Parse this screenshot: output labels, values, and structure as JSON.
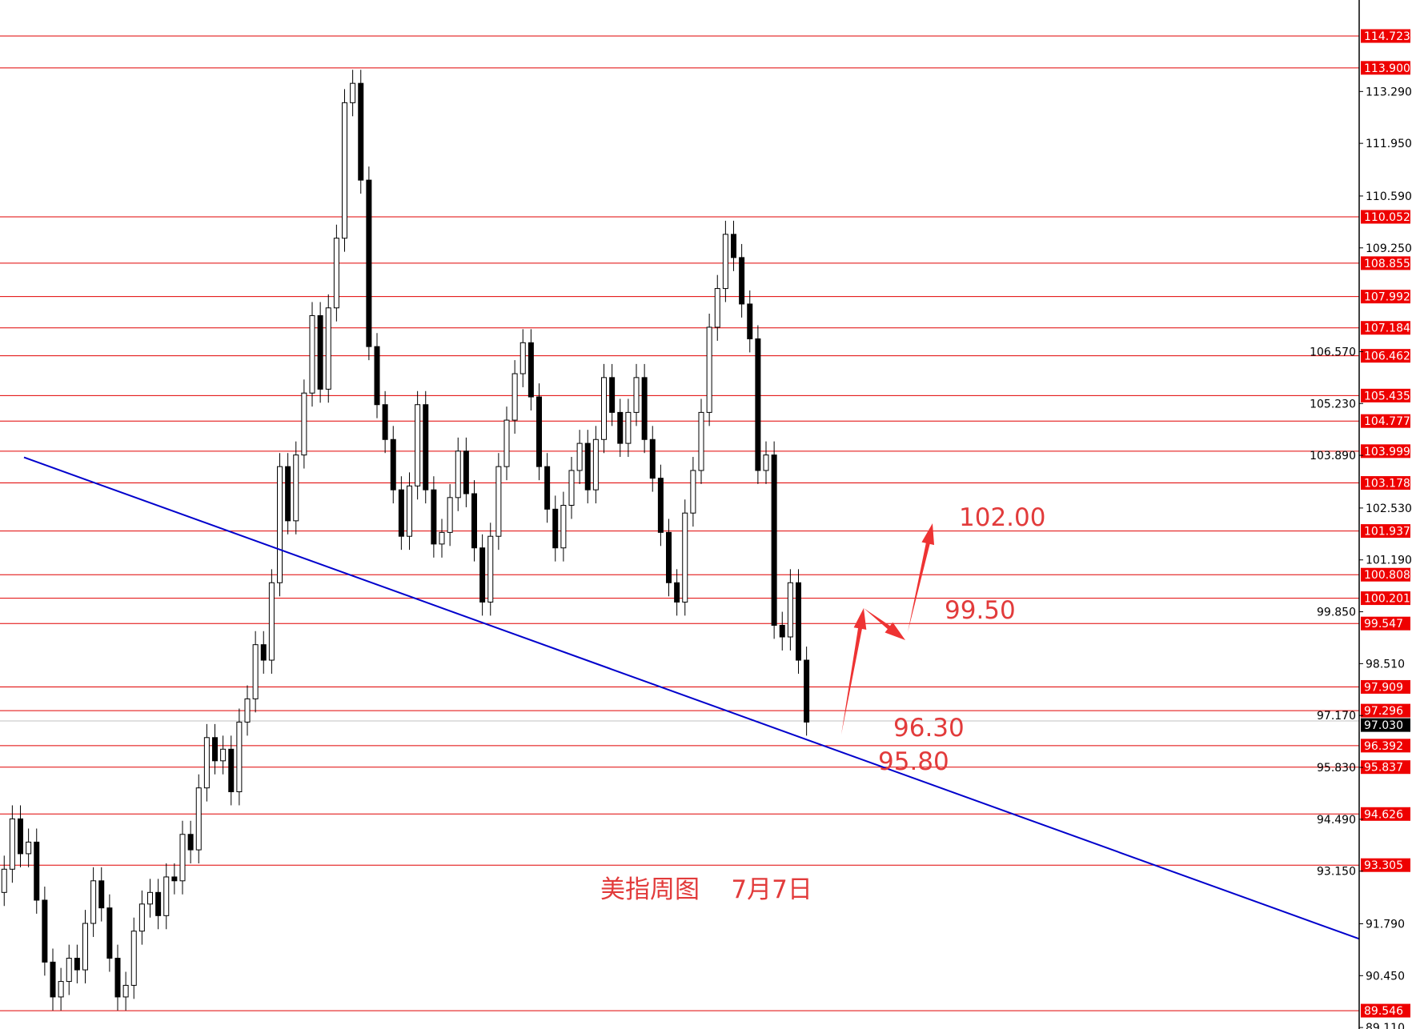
{
  "chart_data": {
    "type": "candlestick",
    "title": "美指周图    7月7日",
    "ylim": [
      89.0,
      115.6
    ],
    "y_ticks": [
      "113.290",
      "111.950",
      "110.590",
      "109.250",
      "106.570",
      "105.230",
      "103.890",
      "102.530",
      "101.190",
      "99.850",
      "98.510",
      "97.170",
      "95.830",
      "94.490",
      "93.150",
      "91.790",
      "90.450",
      "89.110"
    ],
    "current_price": "97.030",
    "closes": [
      93.2,
      94.5,
      93.6,
      93.9,
      92.4,
      90.8,
      89.9,
      90.3,
      90.9,
      90.6,
      91.8,
      92.9,
      92.2,
      90.9,
      89.9,
      90.2,
      91.6,
      92.3,
      92.6,
      92.0,
      93.0,
      92.9,
      94.1,
      93.7,
      95.3,
      96.6,
      96.0,
      96.3,
      95.2,
      97.0,
      97.6,
      99.0,
      98.6,
      100.6,
      103.6,
      102.2,
      103.9,
      105.5,
      107.5,
      105.6,
      107.7,
      109.5,
      113.0,
      113.5,
      111.0,
      106.7,
      105.2,
      104.3,
      103.0,
      101.8,
      103.1,
      105.2,
      103.0,
      101.6,
      101.9,
      102.8,
      104.0,
      102.9,
      101.5,
      100.1,
      101.8,
      103.6,
      104.8,
      106.0,
      106.8,
      105.4,
      103.6,
      102.5,
      101.5,
      102.6,
      103.5,
      104.2,
      103.0,
      104.3,
      105.9,
      105.0,
      104.2,
      105.0,
      105.9,
      104.3,
      103.3,
      101.9,
      100.6,
      100.1,
      102.4,
      103.5,
      105.0,
      107.2,
      108.2,
      109.6,
      109.0,
      107.8,
      106.9,
      103.5,
      103.9,
      99.5,
      99.2,
      100.6,
      98.6,
      97.0
    ],
    "horizontal_levels": [
      "114.723",
      "113.900",
      "110.052",
      "108.855",
      "107.992",
      "107.184",
      "106.462",
      "105.435",
      "104.777",
      "103.999",
      "103.178",
      "101.937",
      "100.808",
      "100.201",
      "99.547",
      "97.909",
      "97.296",
      "96.392",
      "95.837",
      "94.626",
      "93.305",
      "89.546"
    ],
    "trendline": {
      "start_price": 103.84,
      "end_price": 91.4,
      "color": "#0000cc"
    },
    "annotations": {
      "target_1": "102.00",
      "target_2": "99.50",
      "support_1": "96.30",
      "support_2": "95.80"
    },
    "colors": {
      "level": "#e00000",
      "annotation": "#e23b3b",
      "candle": "#000000",
      "trendline": "#0000cc"
    }
  }
}
